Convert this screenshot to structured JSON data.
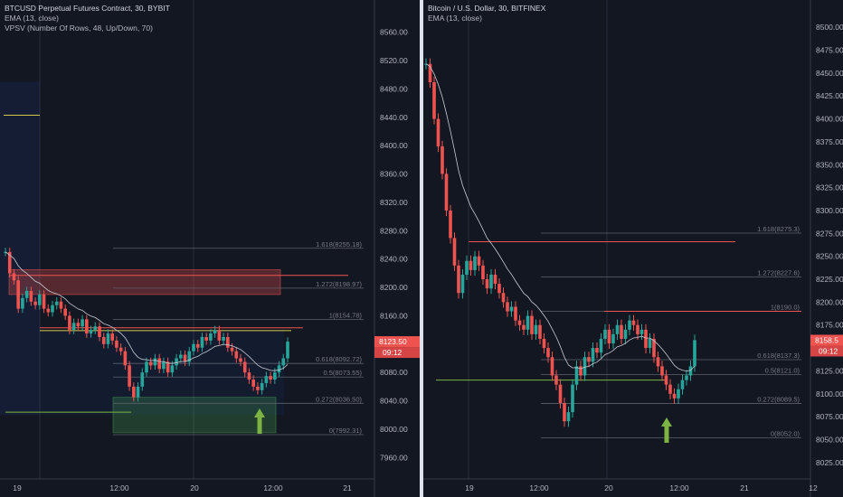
{
  "chart_data": [
    {
      "type": "candlestick",
      "title": "BTCUSD Perpetual Futures Contract, 30, BYBIT",
      "indicators": [
        "EMA (13, close)",
        "VPSV (Number Of Rows, 48, Up/Down, 70)"
      ],
      "ylim": [
        7940,
        8580
      ],
      "y_ticks": [
        "8560.00",
        "8520.00",
        "8480.00",
        "8440.00",
        "8400.00",
        "8360.00",
        "8320.00",
        "8280.00",
        "8240.00",
        "8200.00",
        "8160.00",
        "8120.00",
        "8080.00",
        "8040.00",
        "8000.00",
        "7960.00"
      ],
      "x_ticks": [
        "19",
        "12:00",
        "20",
        "12:00",
        "21"
      ],
      "last_price": "8123.50",
      "countdown": "09:12",
      "fib_levels": [
        {
          "label": "1.618(8255.18)",
          "value": 8255.18
        },
        {
          "label": "1.272(8198.97)",
          "value": 8198.97
        },
        {
          "label": "1(8154.78)",
          "value": 8154.78
        },
        {
          "label": "0.618(8092.72)",
          "value": 8092.72
        },
        {
          "label": "0.5(8073.55)",
          "value": 8073.55
        },
        {
          "label": "0.272(8036.50)",
          "value": 8036.5
        },
        {
          "label": "0(7992.31)",
          "value": 7992.31
        }
      ],
      "closes": [
        8250,
        8220,
        8210,
        8170,
        8185,
        8195,
        8180,
        8175,
        8190,
        8170,
        8165,
        8175,
        8180,
        8170,
        8160,
        8140,
        8150,
        8145,
        8155,
        8135,
        8140,
        8145,
        8130,
        8120,
        8135,
        8125,
        8115,
        8110,
        8090,
        8060,
        8045,
        8060,
        8080,
        8095,
        8090,
        8100,
        8085,
        8095,
        8080,
        8090,
        8100,
        8105,
        8095,
        8110,
        8120,
        8115,
        8130,
        8125,
        8135,
        8140,
        8125,
        8130,
        8115,
        8110,
        8100,
        8095,
        8080,
        8070,
        8060,
        8055,
        8065,
        8075,
        8070,
        8080,
        8090,
        8100,
        8123.5
      ]
    },
    {
      "type": "candlestick",
      "title": "Bitcoin / U.S. Dollar, 30, BITFINEX",
      "indicators": [
        "EMA (13, close)"
      ],
      "ylim": [
        8015,
        8510
      ],
      "y_ticks": [
        "8500.00",
        "8475.00",
        "8450.00",
        "8425.00",
        "8400.00",
        "8375.00",
        "8350.00",
        "8325.00",
        "8300.00",
        "8275.00",
        "8250.00",
        "8225.00",
        "8200.00",
        "8175.00",
        "8150.00",
        "8125.00",
        "8100.00",
        "8075.00",
        "8050.00",
        "8025.00"
      ],
      "x_ticks": [
        "19",
        "12:00",
        "20",
        "12:00",
        "21",
        "12"
      ],
      "last_price": "8158.5",
      "countdown": "09:12",
      "fib_levels": [
        {
          "label": "1.618(8275.3)",
          "value": 8275.3
        },
        {
          "label": "1.272(8227.6)",
          "value": 8227.6
        },
        {
          "label": "1(8190.0)",
          "value": 8190.0
        },
        {
          "label": "0.618(8137.3)",
          "value": 8137.3
        },
        {
          "label": "0.5(8121.0)",
          "value": 8121.0
        },
        {
          "label": "0.272(8089.5)",
          "value": 8089.5
        },
        {
          "label": "0(8052.0)",
          "value": 8052.0
        }
      ],
      "closes": [
        8460,
        8440,
        8400,
        8370,
        8340,
        8300,
        8270,
        8240,
        8210,
        8230,
        8245,
        8235,
        8250,
        8240,
        8225,
        8215,
        8230,
        8220,
        8210,
        8200,
        8190,
        8195,
        8180,
        8175,
        8170,
        8185,
        8165,
        8175,
        8160,
        8150,
        8140,
        8120,
        8110,
        8090,
        8070,
        8080,
        8110,
        8130,
        8120,
        8140,
        8135,
        8150,
        8145,
        8160,
        8170,
        8155,
        8165,
        8175,
        8160,
        8170,
        8180,
        8175,
        8165,
        8170,
        8150,
        8160,
        8140,
        8130,
        8120,
        8110,
        8100,
        8095,
        8105,
        8115,
        8120,
        8130,
        8158.5
      ]
    }
  ]
}
